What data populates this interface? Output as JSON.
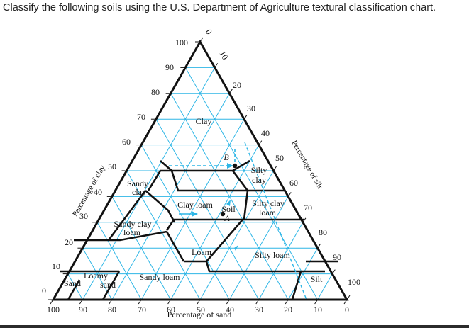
{
  "question": "Classify the following soils using the U.S. Department of Agriculture textural classification chart.",
  "axes": {
    "clay": {
      "label": "Percentage of clay",
      "ticks": [
        "0",
        "10",
        "20",
        "30",
        "40",
        "50",
        "60",
        "70",
        "80",
        "90",
        "100"
      ]
    },
    "silt": {
      "label": "Percentage of silt",
      "ticks": [
        "0",
        "10",
        "20",
        "30",
        "40",
        "50",
        "60",
        "70",
        "80",
        "90",
        "100"
      ]
    },
    "sand": {
      "label": "Percentage of sand",
      "ticks": [
        "100",
        "90",
        "80",
        "70",
        "60",
        "50",
        "40",
        "30",
        "20",
        "10",
        "0"
      ]
    }
  },
  "regions": {
    "clay": "Clay",
    "silty_clay_1": "Silty",
    "silty_clay_2": "clay",
    "sandy_clay_1": "Sandy",
    "sandy_clay_2": "clay",
    "clay_loam": "Clay loam",
    "silty_clay_loam_1": "Silty clay",
    "silty_clay_loam_2": "loam",
    "sandy_clay_loam_1": "Sandy clay",
    "sandy_clay_loam_2": "loam",
    "loam": "Loam",
    "silt_loam": "Silty loam",
    "sandy_loam": "Sandy loam",
    "loamy_sand_1": "Loamy",
    "loamy_sand_2": "sand",
    "sand": "Sand",
    "silt": "Silt"
  },
  "samples": {
    "a_label_1": "Soil",
    "a_label_2": "A",
    "b_label": "B"
  },
  "colors": {
    "grid": "#2eb6e6",
    "boundary": "#111111"
  }
}
